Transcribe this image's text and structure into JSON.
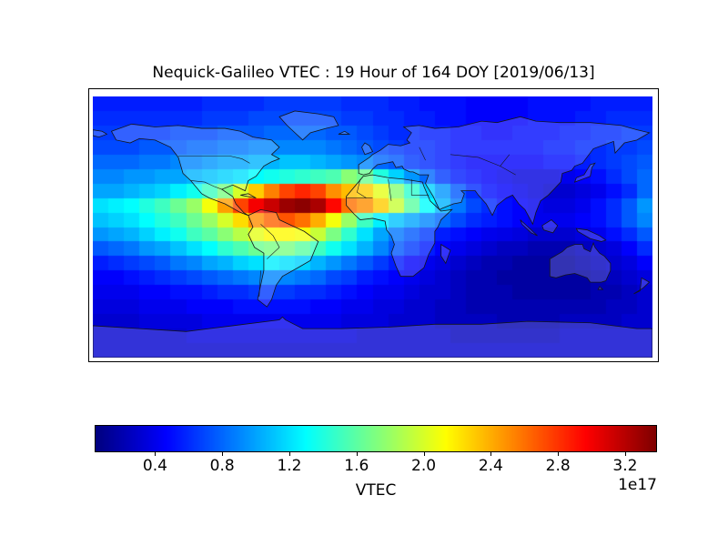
{
  "title": "Nequick-Galileo VTEC : 19 Hour of 164 DOY [2019/06/13]",
  "colorbar": {
    "label": "VTEC",
    "offset_text": "1e17",
    "colormap": "jet",
    "tick_values": [
      0.4,
      0.8,
      1.2,
      1.6,
      2.0,
      2.4,
      2.8,
      3.2
    ],
    "tick_labels": [
      "0.4",
      "0.8",
      "1.2",
      "1.6",
      "2.0",
      "2.4",
      "2.8",
      "3.2"
    ],
    "min_color": "#000080",
    "max_color": "#800000"
  },
  "chart_data": {
    "type": "heatmap",
    "title": "Nequick-Galileo VTEC : 19 Hour of 164 DOY [2019/06/13]",
    "value_label": "VTEC",
    "scale_factor": "1e17",
    "colormap": "jet",
    "vmin": 0.04,
    "vmax": 3.39,
    "lon_range": [
      -180,
      180
    ],
    "lat_range": [
      -90,
      90
    ],
    "grid_order": "rows north-to-south, columns west-to-east, cell centers every 10 degrees",
    "grid": [
      [
        0.55,
        0.55,
        0.55,
        0.55,
        0.55,
        0.55,
        0.55,
        0.6,
        0.6,
        0.6,
        0.6,
        0.65,
        0.65,
        0.65,
        0.65,
        0.65,
        0.6,
        0.6,
        0.6,
        0.55,
        0.55,
        0.5,
        0.5,
        0.5,
        0.45,
        0.45,
        0.45,
        0.45,
        0.5,
        0.5,
        0.5,
        0.5,
        0.55,
        0.55,
        0.55,
        0.55
      ],
      [
        0.6,
        0.6,
        0.6,
        0.6,
        0.6,
        0.6,
        0.6,
        0.65,
        0.65,
        0.65,
        0.7,
        0.7,
        0.7,
        0.7,
        0.7,
        0.7,
        0.65,
        0.65,
        0.6,
        0.6,
        0.55,
        0.55,
        0.5,
        0.5,
        0.45,
        0.45,
        0.45,
        0.45,
        0.5,
        0.5,
        0.5,
        0.55,
        0.55,
        0.6,
        0.6,
        0.6
      ],
      [
        0.65,
        0.65,
        0.65,
        0.65,
        0.65,
        0.7,
        0.7,
        0.7,
        0.75,
        0.75,
        0.75,
        0.8,
        0.8,
        0.8,
        0.8,
        0.75,
        0.75,
        0.7,
        0.65,
        0.6,
        0.6,
        0.55,
        0.55,
        0.5,
        0.5,
        0.45,
        0.45,
        0.5,
        0.5,
        0.5,
        0.55,
        0.55,
        0.6,
        0.6,
        0.65,
        0.65
      ],
      [
        0.7,
        0.7,
        0.7,
        0.75,
        0.75,
        0.75,
        0.8,
        0.8,
        0.85,
        0.85,
        0.9,
        0.9,
        0.9,
        0.9,
        0.9,
        0.85,
        0.8,
        0.75,
        0.7,
        0.65,
        0.6,
        0.6,
        0.55,
        0.5,
        0.5,
        0.5,
        0.5,
        0.5,
        0.5,
        0.55,
        0.55,
        0.6,
        0.6,
        0.65,
        0.65,
        0.7
      ],
      [
        0.8,
        0.8,
        0.8,
        0.85,
        0.85,
        0.9,
        0.9,
        0.95,
        1.0,
        1.0,
        1.05,
        1.05,
        1.1,
        1.1,
        1.05,
        1.0,
        0.95,
        0.9,
        0.8,
        0.75,
        0.65,
        0.6,
        0.55,
        0.5,
        0.45,
        0.45,
        0.45,
        0.45,
        0.45,
        0.5,
        0.5,
        0.55,
        0.6,
        0.65,
        0.7,
        0.75
      ],
      [
        0.9,
        0.9,
        0.95,
        0.95,
        1.0,
        1.0,
        1.05,
        1.1,
        1.15,
        1.2,
        1.3,
        1.35,
        1.4,
        1.45,
        1.5,
        1.55,
        1.75,
        1.65,
        1.4,
        1.15,
        0.95,
        0.8,
        0.65,
        0.55,
        0.5,
        0.45,
        0.4,
        0.35,
        0.35,
        0.35,
        0.4,
        0.45,
        0.5,
        0.6,
        0.7,
        0.8
      ],
      [
        1.0,
        1.0,
        1.05,
        1.1,
        1.15,
        1.25,
        1.35,
        1.5,
        1.7,
        2.0,
        2.3,
        2.55,
        2.75,
        2.85,
        2.75,
        2.5,
        2.35,
        2.3,
        2.05,
        1.75,
        1.45,
        1.15,
        0.95,
        0.75,
        0.6,
        0.5,
        0.45,
        0.4,
        0.35,
        0.3,
        0.3,
        0.35,
        0.4,
        0.5,
        0.6,
        0.8
      ],
      [
        1.2,
        1.25,
        1.3,
        1.4,
        1.5,
        1.65,
        1.8,
        2.1,
        2.45,
        2.75,
        3.0,
        3.15,
        3.3,
        3.35,
        3.25,
        2.95,
        2.6,
        2.5,
        2.3,
        1.95,
        1.6,
        1.3,
        1.05,
        0.85,
        0.7,
        0.6,
        0.5,
        0.45,
        0.4,
        0.35,
        0.35,
        0.4,
        0.5,
        0.6,
        0.75,
        0.95
      ],
      [
        1.1,
        1.15,
        1.2,
        1.3,
        1.4,
        1.5,
        1.65,
        1.8,
        2.0,
        2.25,
        2.5,
        2.65,
        2.7,
        2.6,
        2.4,
        2.1,
        1.8,
        1.5,
        1.25,
        1.1,
        1.0,
        0.9,
        0.8,
        0.7,
        0.6,
        0.55,
        0.5,
        0.45,
        0.4,
        0.4,
        0.4,
        0.45,
        0.5,
        0.6,
        0.75,
        0.9
      ],
      [
        0.95,
        1.0,
        1.05,
        1.15,
        1.25,
        1.35,
        1.5,
        1.6,
        1.75,
        1.9,
        2.05,
        2.15,
        2.15,
        2.1,
        1.95,
        1.7,
        1.45,
        1.2,
        1.0,
        0.85,
        0.75,
        0.65,
        0.55,
        0.5,
        0.45,
        0.4,
        0.38,
        0.35,
        0.3,
        0.3,
        0.3,
        0.35,
        0.4,
        0.5,
        0.6,
        0.75
      ],
      [
        0.75,
        0.8,
        0.85,
        0.95,
        1.0,
        1.1,
        1.2,
        1.3,
        1.45,
        1.55,
        1.65,
        1.7,
        1.7,
        1.6,
        1.5,
        1.35,
        1.2,
        1.05,
        0.9,
        0.75,
        0.65,
        0.55,
        0.45,
        0.4,
        0.35,
        0.3,
        0.25,
        0.25,
        0.2,
        0.2,
        0.2,
        0.25,
        0.3,
        0.35,
        0.45,
        0.6
      ],
      [
        0.55,
        0.6,
        0.65,
        0.7,
        0.75,
        0.85,
        0.9,
        1.0,
        1.05,
        1.15,
        1.2,
        1.25,
        1.2,
        1.15,
        1.05,
        0.95,
        0.85,
        0.75,
        0.65,
        0.55,
        0.45,
        0.4,
        0.35,
        0.3,
        0.25,
        0.2,
        0.2,
        0.15,
        0.15,
        0.15,
        0.15,
        0.2,
        0.25,
        0.3,
        0.35,
        0.45
      ],
      [
        0.45,
        0.45,
        0.5,
        0.55,
        0.6,
        0.65,
        0.7,
        0.75,
        0.8,
        0.85,
        0.9,
        0.9,
        0.9,
        0.85,
        0.8,
        0.7,
        0.65,
        0.55,
        0.5,
        0.45,
        0.4,
        0.35,
        0.3,
        0.25,
        0.2,
        0.2,
        0.15,
        0.15,
        0.15,
        0.15,
        0.15,
        0.15,
        0.2,
        0.25,
        0.3,
        0.35
      ],
      [
        0.4,
        0.4,
        0.4,
        0.45,
        0.45,
        0.5,
        0.5,
        0.55,
        0.6,
        0.6,
        0.65,
        0.65,
        0.65,
        0.6,
        0.6,
        0.55,
        0.5,
        0.45,
        0.4,
        0.4,
        0.35,
        0.3,
        0.3,
        0.25,
        0.2,
        0.2,
        0.2,
        0.15,
        0.15,
        0.15,
        0.15,
        0.15,
        0.2,
        0.2,
        0.25,
        0.3
      ],
      [
        0.35,
        0.35,
        0.35,
        0.4,
        0.4,
        0.4,
        0.45,
        0.45,
        0.45,
        0.5,
        0.5,
        0.5,
        0.5,
        0.5,
        0.45,
        0.45,
        0.4,
        0.4,
        0.35,
        0.35,
        0.3,
        0.3,
        0.25,
        0.25,
        0.2,
        0.2,
        0.2,
        0.2,
        0.2,
        0.2,
        0.2,
        0.2,
        0.2,
        0.25,
        0.25,
        0.3
      ],
      [
        0.3,
        0.3,
        0.3,
        0.35,
        0.35,
        0.35,
        0.35,
        0.4,
        0.4,
        0.4,
        0.4,
        0.4,
        0.4,
        0.4,
        0.4,
        0.4,
        0.35,
        0.35,
        0.35,
        0.3,
        0.3,
        0.3,
        0.25,
        0.25,
        0.25,
        0.25,
        0.2,
        0.2,
        0.2,
        0.2,
        0.25,
        0.25,
        0.25,
        0.25,
        0.3,
        0.3
      ],
      [
        0.3,
        0.3,
        0.3,
        0.3,
        0.3,
        0.3,
        0.35,
        0.35,
        0.35,
        0.35,
        0.35,
        0.35,
        0.35,
        0.35,
        0.35,
        0.35,
        0.35,
        0.3,
        0.3,
        0.3,
        0.3,
        0.3,
        0.3,
        0.25,
        0.25,
        0.25,
        0.25,
        0.25,
        0.25,
        0.25,
        0.3,
        0.3,
        0.3,
        0.3,
        0.3,
        0.3
      ],
      [
        0.3,
        0.3,
        0.3,
        0.3,
        0.3,
        0.3,
        0.3,
        0.3,
        0.3,
        0.3,
        0.3,
        0.3,
        0.3,
        0.3,
        0.3,
        0.3,
        0.3,
        0.3,
        0.3,
        0.3,
        0.3,
        0.3,
        0.3,
        0.3,
        0.3,
        0.3,
        0.3,
        0.3,
        0.3,
        0.3,
        0.3,
        0.3,
        0.3,
        0.3,
        0.3,
        0.3
      ]
    ]
  }
}
